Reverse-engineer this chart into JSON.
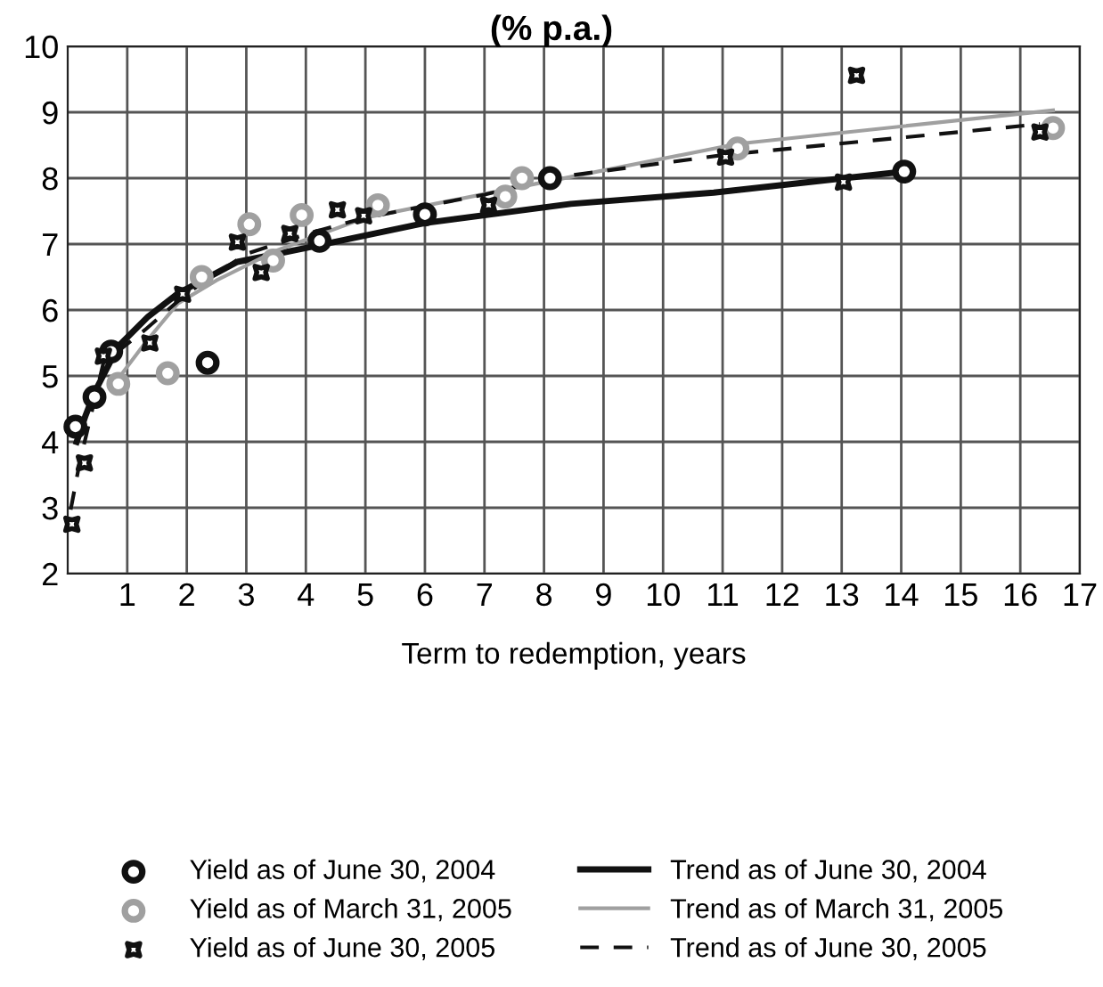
{
  "chart_data": {
    "type": "scatter",
    "title": "(% p.a.)",
    "xlabel": "Term to redemption, years",
    "xlim": [
      0,
      17
    ],
    "ylim": [
      2,
      10
    ],
    "xticks": [
      1,
      2,
      3,
      4,
      5,
      6,
      7,
      8,
      9,
      10,
      11,
      12,
      13,
      14,
      15,
      16,
      17
    ],
    "yticks": [
      2,
      3,
      4,
      5,
      6,
      7,
      8,
      9,
      10
    ],
    "grid": true,
    "legend": "bottom",
    "series": [
      {
        "name": "Yield as of June 30, 2004",
        "marker": "circle",
        "color": "#111111",
        "x": [
          0.13,
          0.45,
          0.73,
          2.35,
          4.23,
          6.0,
          8.1,
          14.05
        ],
        "values": [
          4.23,
          4.68,
          5.37,
          5.2,
          7.05,
          7.45,
          8.0,
          8.1
        ]
      },
      {
        "name": "Yield as of March 31, 2005",
        "marker": "circle",
        "color": "#a0a0a0",
        "x": [
          0.85,
          1.68,
          2.25,
          3.05,
          3.45,
          3.93,
          5.21,
          7.35,
          7.63,
          11.25,
          16.55
        ],
        "values": [
          4.88,
          5.04,
          6.5,
          7.3,
          6.75,
          7.44,
          7.59,
          7.72,
          8.0,
          8.45,
          8.76
        ]
      },
      {
        "name": "Yield as of June 30, 2005",
        "marker": "star",
        "color": "#111111",
        "x": [
          0.07,
          0.28,
          0.6,
          1.38,
          1.93,
          2.85,
          3.25,
          3.73,
          4.53,
          4.97,
          7.07,
          11.05,
          13.03,
          13.25,
          16.33
        ],
        "values": [
          2.75,
          3.68,
          5.3,
          5.5,
          6.24,
          7.03,
          6.57,
          7.16,
          7.52,
          7.43,
          7.59,
          8.32,
          7.94,
          9.56,
          8.7
        ]
      },
      {
        "name": "Trend as of June 30, 2004",
        "type": "line",
        "line_style": "solid",
        "color": "#111111",
        "x": [
          0.15,
          0.3,
          0.45,
          0.85,
          1.35,
          1.85,
          2.85,
          4,
          6,
          8.45,
          10.85,
          14.05
        ],
        "values": [
          4.0,
          4.4,
          4.75,
          5.45,
          5.9,
          6.25,
          6.73,
          6.94,
          7.32,
          7.61,
          7.78,
          8.1
        ]
      },
      {
        "name": "Trend as of March 31, 2005",
        "type": "line",
        "line_style": "solid",
        "color": "#a0a0a0",
        "x": [
          0.8,
          1.3,
          1.85,
          2.5,
          3.5,
          5,
          7.5,
          11.25,
          16.55
        ],
        "values": [
          4.9,
          5.5,
          6.1,
          6.45,
          6.9,
          7.4,
          7.85,
          8.52,
          9.03
        ]
      },
      {
        "name": "Trend as of June 30, 2005",
        "type": "line",
        "line_style": "dashed",
        "color": "#111111",
        "x": [
          0.05,
          0.2,
          0.6,
          1.3,
          2,
          3,
          4,
          5,
          7,
          8.1,
          11,
          16.33
        ],
        "values": [
          2.97,
          3.68,
          5.2,
          5.7,
          6.25,
          6.85,
          7.15,
          7.4,
          7.75,
          8.0,
          8.35,
          8.82
        ]
      }
    ]
  }
}
